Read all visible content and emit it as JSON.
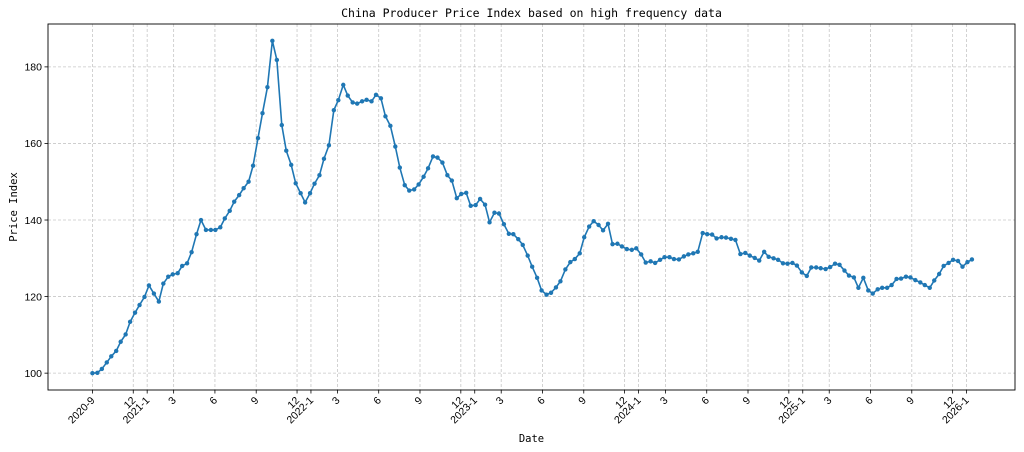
{
  "chart_data": {
    "type": "line",
    "title": "China Producer Price Index based on high frequency data",
    "xlabel": "Date",
    "ylabel": "Price Index",
    "xlim": [
      "2020-05-25",
      "2026-04-19"
    ],
    "ylim": [
      95.6,
      191.2
    ],
    "grid": true,
    "color": "#1f77b4",
    "marker": "circle",
    "yticks": [
      100,
      120,
      140,
      160,
      180
    ],
    "xticks": [
      {
        "date": "2020-09-01",
        "label": "2020-9"
      },
      {
        "date": "2020-12-01",
        "label": "12"
      },
      {
        "date": "2021-01-01",
        "label": "2021-1"
      },
      {
        "date": "2021-03-01",
        "label": "3"
      },
      {
        "date": "2021-06-01",
        "label": "6"
      },
      {
        "date": "2021-09-01",
        "label": "9"
      },
      {
        "date": "2021-12-01",
        "label": "12"
      },
      {
        "date": "2022-01-01",
        "label": "2022-1"
      },
      {
        "date": "2022-03-01",
        "label": "3"
      },
      {
        "date": "2022-06-01",
        "label": "6"
      },
      {
        "date": "2022-09-01",
        "label": "9"
      },
      {
        "date": "2022-12-01",
        "label": "12"
      },
      {
        "date": "2023-01-01",
        "label": "2023-1"
      },
      {
        "date": "2023-03-01",
        "label": "3"
      },
      {
        "date": "2023-06-01",
        "label": "6"
      },
      {
        "date": "2023-09-01",
        "label": "9"
      },
      {
        "date": "2023-12-01",
        "label": "12"
      },
      {
        "date": "2024-01-01",
        "label": "2024-1"
      },
      {
        "date": "2024-03-01",
        "label": "3"
      },
      {
        "date": "2024-06-01",
        "label": "6"
      },
      {
        "date": "2024-09-01",
        "label": "9"
      },
      {
        "date": "2024-12-01",
        "label": "12"
      },
      {
        "date": "2025-01-01",
        "label": "2025-1"
      },
      {
        "date": "2025-03-01",
        "label": "3"
      },
      {
        "date": "2025-06-01",
        "label": "6"
      },
      {
        "date": "2025-09-01",
        "label": "9"
      },
      {
        "date": "2025-12-01",
        "label": "12"
      },
      {
        "date": "2026-01-01",
        "label": "2026-1"
      }
    ],
    "x": [
      "2020-09-01",
      "2020-09-12",
      "2020-09-22",
      "2020-10-03",
      "2020-10-13",
      "2020-10-24",
      "2020-11-03",
      "2020-11-14",
      "2020-11-24",
      "2020-12-05",
      "2020-12-15",
      "2020-12-26",
      "2021-01-05",
      "2021-01-16",
      "2021-01-27",
      "2021-02-06",
      "2021-02-17",
      "2021-02-27",
      "2021-03-10",
      "2021-03-20",
      "2021-03-31",
      "2021-04-10",
      "2021-04-21",
      "2021-05-01",
      "2021-05-12",
      "2021-05-23",
      "2021-06-02",
      "2021-06-13",
      "2021-06-23",
      "2021-07-04",
      "2021-07-14",
      "2021-07-25",
      "2021-08-04",
      "2021-08-15",
      "2021-08-25",
      "2021-09-05",
      "2021-09-15",
      "2021-09-26",
      "2021-10-07",
      "2021-10-17",
      "2021-10-28",
      "2021-11-07",
      "2021-11-18",
      "2021-11-28",
      "2021-12-09",
      "2021-12-19",
      "2021-12-30",
      "2022-01-09",
      "2022-01-20",
      "2022-01-30",
      "2022-02-10",
      "2022-02-21",
      "2022-03-03",
      "2022-03-14",
      "2022-03-24",
      "2022-04-04",
      "2022-04-14",
      "2022-04-25",
      "2022-05-05",
      "2022-05-16",
      "2022-05-26",
      "2022-06-06",
      "2022-06-16",
      "2022-06-27",
      "2022-07-08",
      "2022-07-18",
      "2022-07-29",
      "2022-08-08",
      "2022-08-19",
      "2022-08-29",
      "2022-09-09",
      "2022-09-19",
      "2022-09-30",
      "2022-10-10",
      "2022-10-21",
      "2022-11-01",
      "2022-11-11",
      "2022-11-22",
      "2022-12-02",
      "2022-12-13",
      "2022-12-23",
      "2023-01-03",
      "2023-01-13",
      "2023-01-24",
      "2023-02-03",
      "2023-02-14",
      "2023-02-24",
      "2023-03-07",
      "2023-03-18",
      "2023-03-28",
      "2023-04-08",
      "2023-04-18",
      "2023-04-29",
      "2023-05-09",
      "2023-05-20",
      "2023-05-30",
      "2023-06-10",
      "2023-06-20",
      "2023-07-01",
      "2023-07-11",
      "2023-07-22",
      "2023-08-02",
      "2023-08-12",
      "2023-08-23",
      "2023-09-02",
      "2023-09-13",
      "2023-09-23",
      "2023-10-04",
      "2023-10-14",
      "2023-10-25",
      "2023-11-04",
      "2023-11-15",
      "2023-11-25",
      "2023-12-06",
      "2023-12-17",
      "2023-12-27",
      "2024-01-07",
      "2024-01-17",
      "2024-01-28",
      "2024-02-07",
      "2024-02-18",
      "2024-02-28",
      "2024-03-10",
      "2024-03-20",
      "2024-03-31",
      "2024-04-11",
      "2024-04-21",
      "2024-05-02",
      "2024-05-12",
      "2024-05-23",
      "2024-06-02",
      "2024-06-13",
      "2024-06-23",
      "2024-07-04",
      "2024-07-14",
      "2024-07-25",
      "2024-08-04",
      "2024-08-15",
      "2024-08-26",
      "2024-09-05",
      "2024-09-16",
      "2024-09-26",
      "2024-10-07",
      "2024-10-17",
      "2024-10-28",
      "2024-11-07",
      "2024-11-18",
      "2024-11-28",
      "2024-12-09",
      "2024-12-19",
      "2024-12-30",
      "2025-01-10",
      "2025-01-20",
      "2025-01-31",
      "2025-02-10",
      "2025-02-21",
      "2025-03-03",
      "2025-03-14",
      "2025-03-24",
      "2025-04-04",
      "2025-04-14",
      "2025-04-25",
      "2025-05-05",
      "2025-05-16",
      "2025-05-27",
      "2025-06-06",
      "2025-06-17",
      "2025-06-27",
      "2025-07-08",
      "2025-07-18",
      "2025-07-29",
      "2025-08-08",
      "2025-08-19",
      "2025-08-29",
      "2025-09-09",
      "2025-09-20",
      "2025-09-30",
      "2025-10-11",
      "2025-10-21",
      "2025-11-01",
      "2025-11-11",
      "2025-11-22",
      "2025-12-02",
      "2025-12-13",
      "2025-12-23",
      "2026-01-03",
      "2026-01-13"
    ],
    "values": [
      100.0,
      100.1,
      101.1,
      102.8,
      104.4,
      105.8,
      108.2,
      110.1,
      113.4,
      115.8,
      117.8,
      119.9,
      122.9,
      120.8,
      118.7,
      123.4,
      125.2,
      125.8,
      126.1,
      128.0,
      128.7,
      131.6,
      136.3,
      140.0,
      137.4,
      137.4,
      137.4,
      138.1,
      140.4,
      142.4,
      144.8,
      146.5,
      148.3,
      150.0,
      154.2,
      161.4,
      167.9,
      174.7,
      186.8,
      181.8,
      164.8,
      158.1,
      154.4,
      149.6,
      147.0,
      144.6,
      147.0,
      149.5,
      151.7,
      156.0,
      159.5,
      168.7,
      171.3,
      175.3,
      172.5,
      170.7,
      170.4,
      171.0,
      171.4,
      171.0,
      172.7,
      171.8,
      167.1,
      164.6,
      159.2,
      153.7,
      149.1,
      147.7,
      148.0,
      149.3,
      151.3,
      153.5,
      156.6,
      156.3,
      155.0,
      151.7,
      150.3,
      145.7,
      146.8,
      147.1,
      143.7,
      143.9,
      145.5,
      144.0,
      139.4,
      141.9,
      141.7,
      138.9,
      136.4,
      136.3,
      135.0,
      133.5,
      130.7,
      127.8,
      124.9,
      121.6,
      120.5,
      121.0,
      122.4,
      124.0,
      127.1,
      129.0,
      129.8,
      131.3,
      135.5,
      138.3,
      139.7,
      138.7,
      137.3,
      139.0,
      133.7,
      133.8,
      133.1,
      132.4,
      132.2,
      132.6,
      131.0,
      128.9,
      129.2,
      128.8,
      129.6,
      130.3,
      130.3,
      129.8,
      129.7,
      130.5,
      131.0,
      131.3,
      131.7,
      136.6,
      136.3,
      136.2,
      135.2,
      135.5,
      135.4,
      135.1,
      134.8,
      131.1,
      131.4,
      130.7,
      130.1,
      129.4,
      131.7,
      130.4,
      130.0,
      129.6,
      128.7,
      128.6,
      128.8,
      128.1,
      126.3,
      125.4,
      127.6,
      127.6,
      127.4,
      127.2,
      127.7,
      128.6,
      128.3,
      126.8,
      125.5,
      125.0,
      122.3,
      124.9,
      121.6,
      120.8,
      121.9,
      122.3,
      122.3,
      123.0,
      124.6,
      124.7,
      125.2,
      125.0,
      124.3,
      123.7,
      123.0,
      122.3,
      124.2,
      125.9,
      128.0,
      128.8,
      129.6,
      129.3,
      127.8,
      129.0,
      129.7
    ]
  }
}
